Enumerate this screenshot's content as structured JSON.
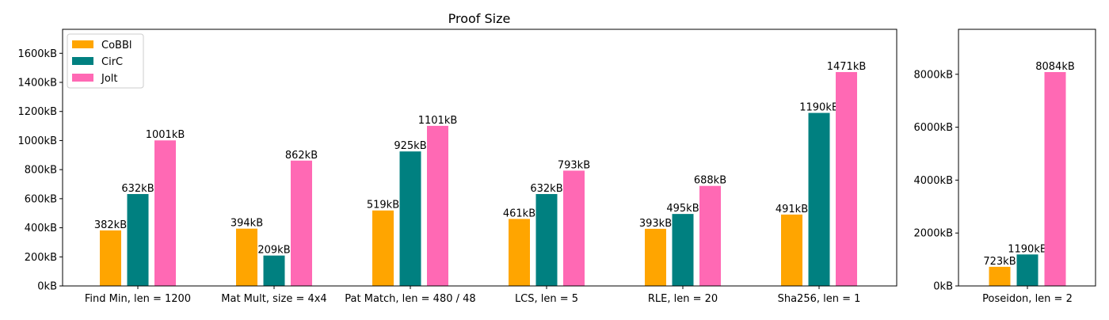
{
  "chart_data": {
    "type": "bar",
    "title": "Proof Size",
    "legend": {
      "placement": "top-left",
      "entries": [
        "CoBBl",
        "CirC",
        "Jolt"
      ]
    },
    "colors": {
      "CoBBl": "#FFA500",
      "CirC": "#008080",
      "Jolt": "#FF69B4"
    },
    "unit_suffix": "kB",
    "panels": [
      {
        "categories": [
          "Find Min, len = 1200",
          "Mat Mult, size = 4x4",
          "Pat Match, len = 480 / 48",
          "LCS, len = 5",
          "RLE, len = 20",
          "Sha256, len = 1"
        ],
        "series": [
          {
            "name": "CoBBl",
            "values": [
              382,
              394,
              519,
              461,
              393,
              491
            ]
          },
          {
            "name": "CirC",
            "values": [
              632,
              209,
              925,
              632,
              495,
              1190
            ]
          },
          {
            "name": "Jolt",
            "values": [
              1001,
              862,
              1101,
              793,
              688,
              1471
            ]
          }
        ],
        "ylim": [
          0,
          1765
        ],
        "yticks": [
          0,
          200,
          400,
          600,
          800,
          1000,
          1200,
          1400,
          1600
        ],
        "ytick_labels": [
          "0kB",
          "200kB",
          "400kB",
          "600kB",
          "800kB",
          "1000kB",
          "1200kB",
          "1400kB",
          "1600kB"
        ],
        "data_labels": [
          [
            "382kB",
            "394kB",
            "519kB",
            "461kB",
            "393kB",
            "491kB"
          ],
          [
            "632kB",
            "209kB",
            "925kB",
            "632kB",
            "495kB",
            "1190kB"
          ],
          [
            "1001kB",
            "862kB",
            "1101kB",
            "793kB",
            "688kB",
            "1471kB"
          ]
        ],
        "grid": false
      },
      {
        "categories": [
          "Poseidon, len = 2"
        ],
        "series": [
          {
            "name": "CoBBl",
            "values": [
              723
            ]
          },
          {
            "name": "CirC",
            "values": [
              1190
            ]
          },
          {
            "name": "Jolt",
            "values": [
              8084
            ]
          }
        ],
        "ylim": [
          0,
          9700
        ],
        "yticks": [
          0,
          2000,
          4000,
          6000,
          8000
        ],
        "ytick_labels": [
          "0kB",
          "2000kB",
          "4000kB",
          "6000kB",
          "8000kB"
        ],
        "data_labels": [
          [
            "723kB"
          ],
          [
            "1190kB"
          ],
          [
            "8084kB"
          ]
        ],
        "grid": false
      }
    ]
  }
}
